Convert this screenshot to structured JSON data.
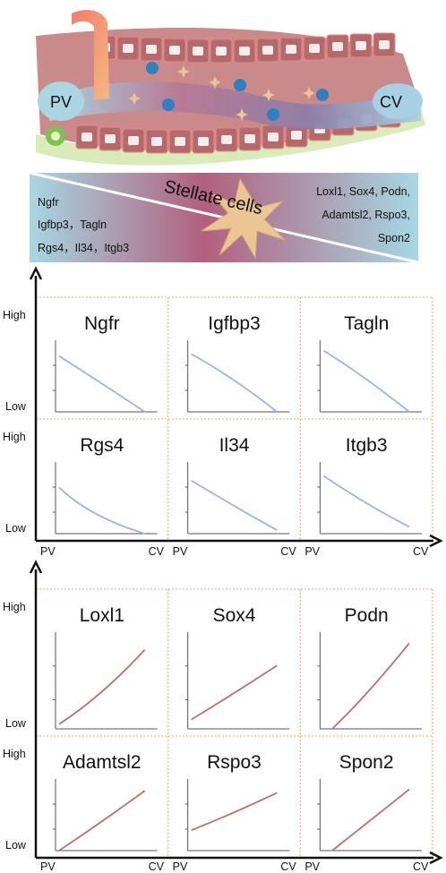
{
  "schematic": {
    "pv_label": "PV",
    "cv_label": "CV",
    "stellate_label": "Stellate cells",
    "left_genes": [
      "Ngfr",
      "Igfbp3，Tagln",
      "Rgs4，Il34，Itgb3"
    ],
    "right_genes": [
      "Loxl1, Sox4, Podn,",
      "Adamtsl2, Rspo3,",
      "Spon2"
    ],
    "colors": {
      "pv": "#a9d6e2",
      "cv": "#a9d6e2",
      "midzone": "#b25f7d",
      "hepatocyte": "#b5696a",
      "stellate": "#e9c692"
    }
  },
  "panels": [
    {
      "id": "decreasing",
      "y_high": "High",
      "y_low": "Low",
      "x_left": "PV",
      "x_right": "CV",
      "line_color": "#9fb2e8",
      "genes": [
        {
          "name": "Ngfr",
          "curve": [
            [
              0,
              0.82
            ],
            [
              0.5,
              0.42
            ],
            [
              1,
              0.0
            ]
          ]
        },
        {
          "name": "Igfbp3",
          "curve": [
            [
              0,
              0.85
            ],
            [
              0.5,
              0.5
            ],
            [
              1,
              0.0
            ]
          ]
        },
        {
          "name": "Tagln",
          "curve": [
            [
              0,
              0.9
            ],
            [
              0.45,
              0.55
            ],
            [
              1,
              0.0
            ]
          ]
        },
        {
          "name": "Rgs4",
          "curve": [
            [
              0,
              0.68
            ],
            [
              0.35,
              0.25
            ],
            [
              1,
              0.0
            ]
          ]
        },
        {
          "name": "Il34",
          "curve": [
            [
              0,
              0.78
            ],
            [
              0.5,
              0.4
            ],
            [
              1,
              0.05
            ]
          ]
        },
        {
          "name": "Itgb3",
          "curve": [
            [
              0,
              0.85
            ],
            [
              0.5,
              0.42
            ],
            [
              1,
              0.1
            ]
          ]
        }
      ]
    },
    {
      "id": "increasing",
      "y_high": "High",
      "y_low": "Low",
      "x_left": "PV",
      "x_right": "CV",
      "line_color": "#b4716f",
      "genes": [
        {
          "name": "Loxl1",
          "curve": [
            [
              0,
              0.05
            ],
            [
              0.5,
              0.35
            ],
            [
              1,
              0.85
            ]
          ]
        },
        {
          "name": "Sox4",
          "curve": [
            [
              0,
              0.1
            ],
            [
              0.5,
              0.38
            ],
            [
              1,
              0.68
            ]
          ]
        },
        {
          "name": "Podn",
          "curve": [
            [
              0.1,
              0.0
            ],
            [
              0.5,
              0.35
            ],
            [
              1,
              0.92
            ]
          ]
        },
        {
          "name": "Adamtsl2",
          "curve": [
            [
              0,
              0.0
            ],
            [
              0.5,
              0.42
            ],
            [
              1,
              0.88
            ]
          ]
        },
        {
          "name": "Rspo3",
          "curve": [
            [
              0,
              0.3
            ],
            [
              0.5,
              0.55
            ],
            [
              1,
              0.85
            ]
          ]
        },
        {
          "name": "Spon2",
          "curve": [
            [
              0.1,
              0.0
            ],
            [
              0.5,
              0.4
            ],
            [
              1,
              0.9
            ]
          ]
        }
      ]
    }
  ]
}
